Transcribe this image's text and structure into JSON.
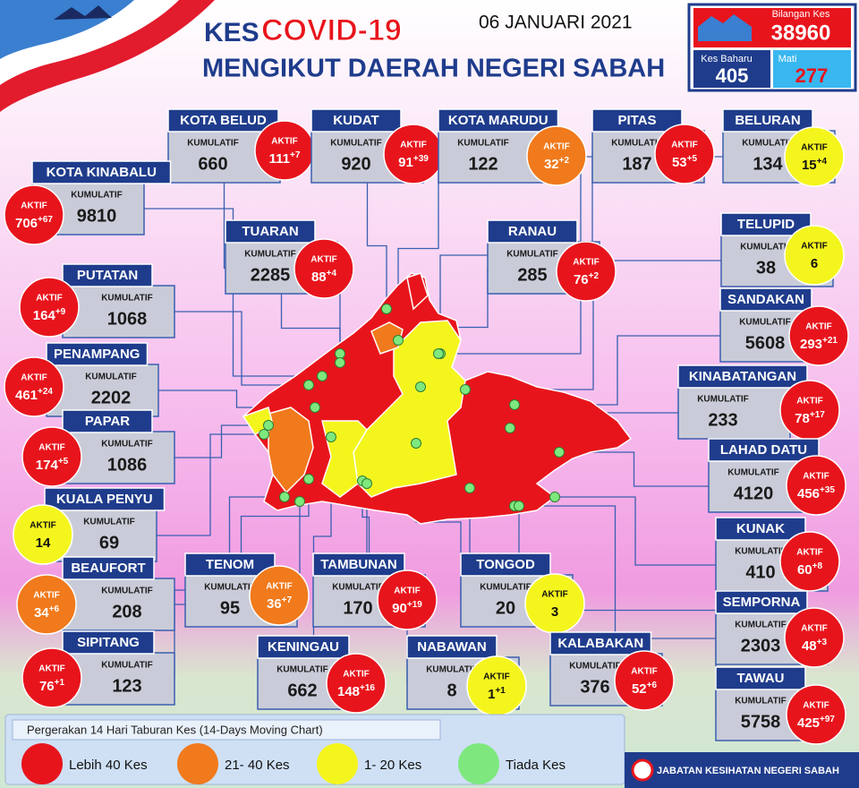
{
  "header": {
    "prefix": "KES",
    "title": "COVID-19",
    "subtitle": "MENGIKUT DAERAH NEGERI SABAH",
    "date": "06 JANUARI 2021"
  },
  "summary": {
    "total_label": "Bilangan Kes",
    "total": 38960,
    "new_label": "Kes Baharu",
    "new": 405,
    "deaths_label": "Mati",
    "deaths": 277
  },
  "labels": {
    "cumulative": "KUMULATIF",
    "active": "AKTIF"
  },
  "districts": [
    {
      "name": "KOTA BELUD",
      "cumulative": 660,
      "active": 111,
      "increase": "+7",
      "color": "#e8141c"
    },
    {
      "name": "KUDAT",
      "cumulative": 920,
      "active": 91,
      "increase": "+39",
      "color": "#e8141c"
    },
    {
      "name": "KOTA MARUDU",
      "cumulative": 122,
      "active": 32,
      "increase": "+2",
      "color": "#f07a1c"
    },
    {
      "name": "PITAS",
      "cumulative": 187,
      "active": 53,
      "increase": "+5",
      "color": "#e8141c"
    },
    {
      "name": "BELURAN",
      "cumulative": 134,
      "active": 15,
      "increase": "+4",
      "color": "#f5f51e"
    },
    {
      "name": "KOTA KINABALU",
      "cumulative": 9810,
      "active": 706,
      "increase": "+67",
      "color": "#e8141c"
    },
    {
      "name": "TUARAN",
      "cumulative": 2285,
      "active": 88,
      "increase": "+4",
      "color": "#e8141c"
    },
    {
      "name": "RANAU",
      "cumulative": 285,
      "active": 76,
      "increase": "+2",
      "color": "#e8141c"
    },
    {
      "name": "TELUPID",
      "cumulative": 38,
      "active": 6,
      "color": "#f5f51e"
    },
    {
      "name": "PUTATAN",
      "cumulative": 1068,
      "active": 164,
      "increase": "+9",
      "color": "#e8141c"
    },
    {
      "name": "SANDAKAN",
      "cumulative": 5608,
      "active": 293,
      "increase": "+21",
      "color": "#e8141c"
    },
    {
      "name": "PENAMPANG",
      "cumulative": 2202,
      "active": 461,
      "increase": "+24",
      "color": "#e8141c"
    },
    {
      "name": "KINABATANGAN",
      "cumulative": 233,
      "active": 78,
      "increase": "+17",
      "color": "#e8141c"
    },
    {
      "name": "PAPAR",
      "cumulative": 1086,
      "active": 174,
      "increase": "+5",
      "color": "#e8141c"
    },
    {
      "name": "LAHAD DATU",
      "cumulative": 4120,
      "active": 456,
      "increase": "+35",
      "color": "#e8141c"
    },
    {
      "name": "KUALA PENYU",
      "cumulative": 69,
      "active": 14,
      "color": "#f5f51e"
    },
    {
      "name": "KUNAK",
      "cumulative": 410,
      "active": 60,
      "increase": "+8",
      "color": "#e8141c"
    },
    {
      "name": "BEAUFORT",
      "cumulative": 208,
      "active": 34,
      "increase": "+6",
      "color": "#f07a1c"
    },
    {
      "name": "TENOM",
      "cumulative": 95,
      "active": 36,
      "increase": "+7",
      "color": "#f07a1c"
    },
    {
      "name": "TAMBUNAN",
      "cumulative": 170,
      "active": 90,
      "increase": "+19",
      "color": "#e8141c"
    },
    {
      "name": "TONGOD",
      "cumulative": 20,
      "active": 3,
      "color": "#f5f51e"
    },
    {
      "name": "SEMPORNA",
      "cumulative": 2303,
      "active": 48,
      "increase": "+3",
      "color": "#e8141c"
    },
    {
      "name": "SIPITANG",
      "cumulative": 123,
      "active": 76,
      "increase": "+1",
      "color": "#e8141c"
    },
    {
      "name": "KENINGAU",
      "cumulative": 662,
      "active": 148,
      "increase": "+16",
      "color": "#e8141c"
    },
    {
      "name": "NABAWAN",
      "cumulative": 8,
      "active": 1,
      "increase": "+1",
      "color": "#f5f51e"
    },
    {
      "name": "KALABAKAN",
      "cumulative": 376,
      "active": 52,
      "increase": "+6",
      "color": "#e8141c"
    },
    {
      "name": "TAWAU",
      "cumulative": 5758,
      "active": 425,
      "increase": "+97",
      "color": "#e8141c"
    }
  ],
  "legend": {
    "title": "Pergerakan 14 Hari Taburan Kes (14-Days Moving Chart)",
    "items": [
      {
        "label": "Lebih 40 Kes",
        "color": "#e8141c"
      },
      {
        "label": "21- 40 Kes",
        "color": "#f07a1c"
      },
      {
        "label": "1- 20 Kes",
        "color": "#f5f51e"
      },
      {
        "label": "Tiada Kes",
        "color": "#7ee87e"
      }
    ]
  },
  "footer": "JABATAN KESIHATAN NEGERI SABAH"
}
